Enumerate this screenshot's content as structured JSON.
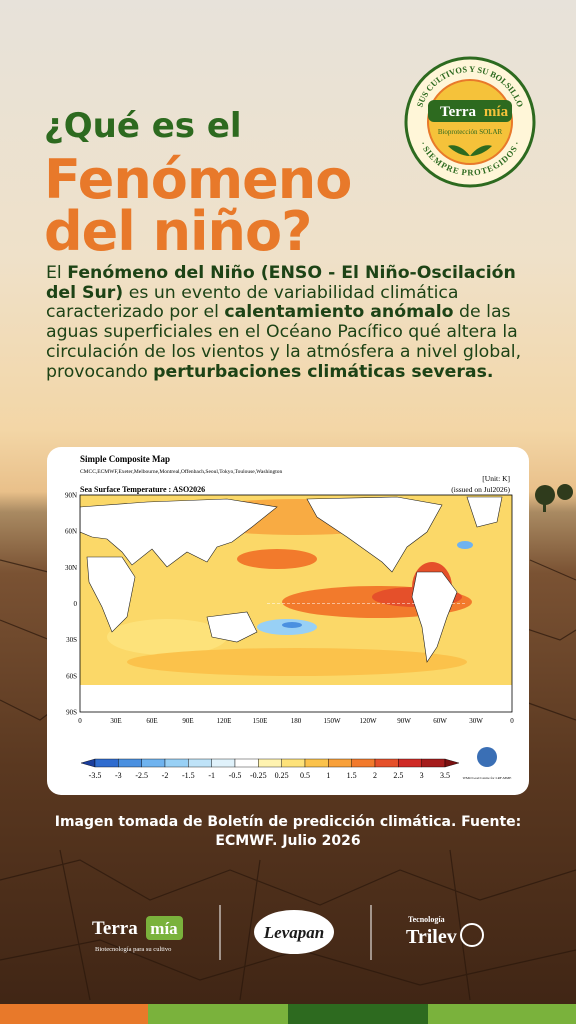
{
  "logo": {
    "arc_top": "SUS CULTIVOS Y SU BOLSILLO",
    "brand_a": "Terra",
    "brand_b": "mía",
    "sub": "Bioprotección SOLAR",
    "arc_bottom": "· SIEMPRE PROTEGIDOS ·"
  },
  "heading": {
    "line1": "¿Qué es el",
    "line2": "Fenómeno",
    "line3": "del niño?"
  },
  "body": [
    "El ",
    "Fenómeno del Niño (ENSO - El Niño-Oscilación del Sur)",
    " es un evento de variabilidad climática caracterizado por el ",
    "calentamiento anómalo",
    " de las aguas superficiales en el Océano Pacífico qué altera la circulación de los vientos y la atmósfera a nivel global, provocando ",
    "perturbaciones climáticas severas."
  ],
  "map": {
    "title": "Simple Composite Map",
    "centers": "CMCC,ECMWF,Exeter,Melbourne,Montreal,Offenbach,Seoul,Tokyo,Toulouse,Washington",
    "unit": "[Unit: K]",
    "variable": "Sea Surface Temperature : ASO2026",
    "issued": "(issued on Jul2026)",
    "lat_labels": [
      "90N",
      "60N",
      "30N",
      "0",
      "30S",
      "60S",
      "90S"
    ],
    "lon_labels": [
      "0",
      "30E",
      "60E",
      "90E",
      "120E",
      "150E",
      "180",
      "150W",
      "120W",
      "90W",
      "60W",
      "30W",
      "0"
    ],
    "colorbar": [
      "-3.5",
      "-3",
      "-2.5",
      "-2",
      "-1.5",
      "-1",
      "-0.5",
      "-0.25",
      "0.25",
      "0.5",
      "1",
      "1.5",
      "2",
      "2.5",
      "3",
      "3.5"
    ],
    "wmo": "WMO Lead Centre for LRF-MME"
  },
  "caption": "Imagen tomada de Boletín de predicción climática. Fuente: ECMWF. Julio 2026",
  "footer": {
    "terramia_a": "Terra",
    "terramia_b": "mía",
    "terramia_sub": "Biotecnología para su cultivo",
    "levapan": "Levapan",
    "tec": "Tecnología",
    "trilev": "Trilev"
  }
}
